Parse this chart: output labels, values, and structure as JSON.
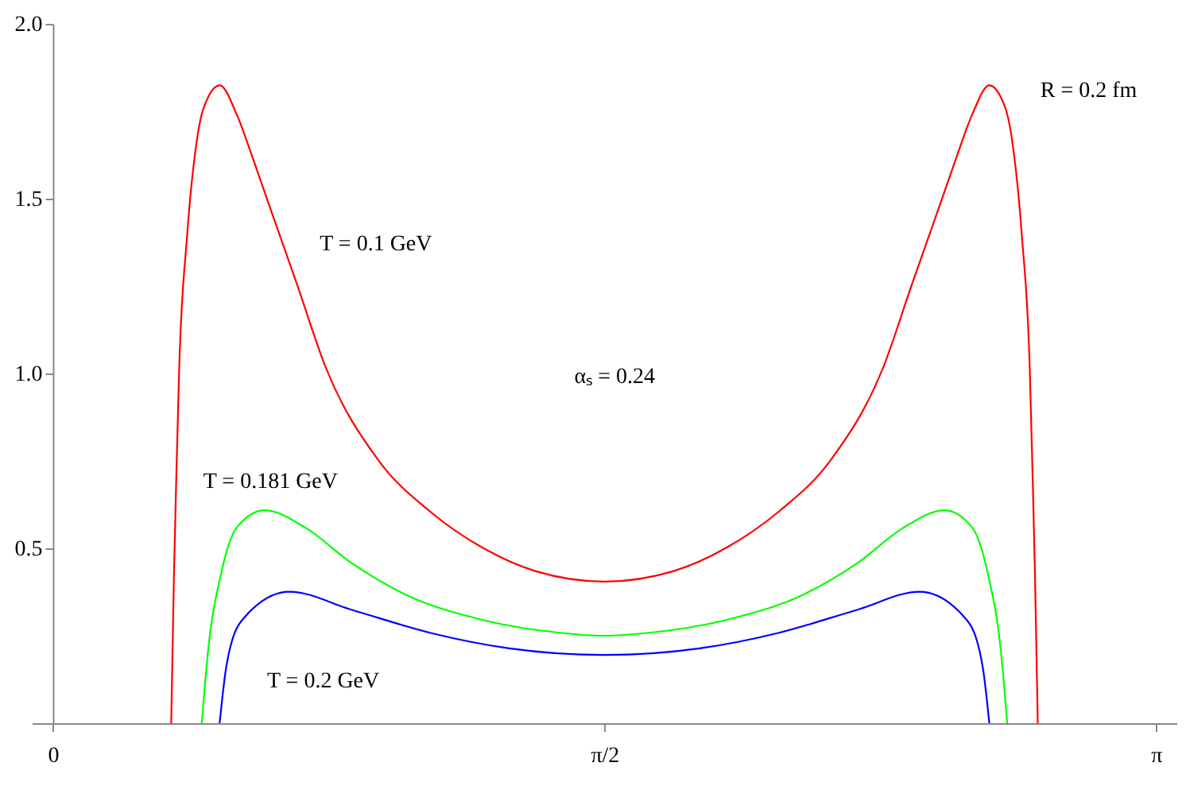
{
  "chart_data": {
    "type": "line",
    "xlim": [
      -0.06,
      3.2
    ],
    "ylim": [
      0,
      2.0
    ],
    "xticks": [
      0,
      {
        "value": 1.5708,
        "label": "π/2"
      },
      {
        "value": 3.1416,
        "label": "π"
      }
    ],
    "yticks": [
      0.5,
      {
        "value": 1.0,
        "label": "1.0"
      },
      1.5,
      {
        "value": 2.0,
        "label": "2.0"
      }
    ],
    "grid": false,
    "series": [
      {
        "name": "T = 0.1 GeV",
        "color": "#ff0000",
        "x": [
          0.337,
          0.345,
          0.352,
          0.36,
          0.382,
          0.412,
          0.442,
          0.475,
          0.524,
          0.568,
          0.613,
          0.696,
          0.777,
          0.927,
          1.076,
          1.225,
          1.374,
          1.571,
          1.768,
          1.917,
          2.066,
          2.215,
          2.365,
          2.446,
          2.529,
          2.574,
          2.618,
          2.667,
          2.7,
          2.73,
          2.76,
          2.782,
          2.79,
          2.797,
          2.805
        ],
        "values": [
          0,
          0.43,
          0.72,
          1.02,
          1.39,
          1.68,
          1.79,
          1.824,
          1.74,
          1.62,
          1.49,
          1.253,
          1.018,
          0.752,
          0.604,
          0.501,
          0.435,
          0.405,
          0.435,
          0.501,
          0.604,
          0.752,
          1.018,
          1.253,
          1.49,
          1.62,
          1.74,
          1.824,
          1.79,
          1.68,
          1.39,
          1.02,
          0.72,
          0.43,
          0
        ]
      },
      {
        "name": "T = 0.181 GeV",
        "color": "#00ff00",
        "x": [
          0.424,
          0.442,
          0.479,
          0.524,
          0.603,
          0.718,
          0.852,
          1.002,
          1.225,
          1.449,
          1.571,
          1.693,
          1.917,
          2.14,
          2.29,
          2.424,
          2.539,
          2.618,
          2.663,
          2.7,
          2.718
        ],
        "values": [
          0,
          0.206,
          0.427,
          0.56,
          0.609,
          0.56,
          0.457,
          0.369,
          0.295,
          0.258,
          0.25,
          0.258,
          0.295,
          0.369,
          0.457,
          0.56,
          0.609,
          0.56,
          0.427,
          0.206,
          0
        ]
      },
      {
        "name": "T = 0.2  GeV",
        "color": "#0000ff",
        "x": [
          0.475,
          0.494,
          0.539,
          0.673,
          0.852,
          1.076,
          1.3,
          1.571,
          1.842,
          2.066,
          2.29,
          2.469,
          2.603,
          2.648,
          2.667
        ],
        "values": [
          0,
          0.162,
          0.295,
          0.376,
          0.324,
          0.258,
          0.214,
          0.195,
          0.214,
          0.258,
          0.324,
          0.376,
          0.295,
          0.162,
          0
        ]
      }
    ],
    "annotations": [
      "αₛ =  0.24",
      "R = 0.2 fm"
    ]
  }
}
